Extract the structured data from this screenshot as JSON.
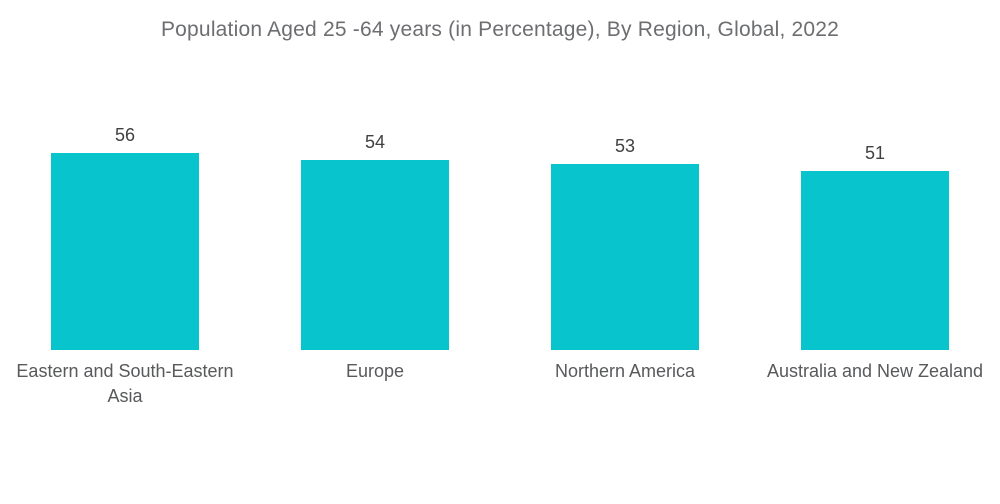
{
  "chart_data": {
    "type": "bar",
    "title": "Population Aged 25 -64 years (in Percentage), By Region, Global, 2022",
    "categories": [
      "Eastern and South-Eastern Asia",
      "Europe",
      "Northern America",
      "Australia and New Zealand"
    ],
    "values": [
      56,
      54,
      53,
      51
    ],
    "value_labels_shown": true,
    "xlabel": "",
    "ylabel": "",
    "ylim": [
      0,
      56
    ],
    "grid": false,
    "legend": false,
    "bar_color": "#07c4cd",
    "title_color": "#6d6e71",
    "value_label_color": "#414042",
    "category_label_color": "#58595b",
    "background_color": "#ffffff"
  }
}
